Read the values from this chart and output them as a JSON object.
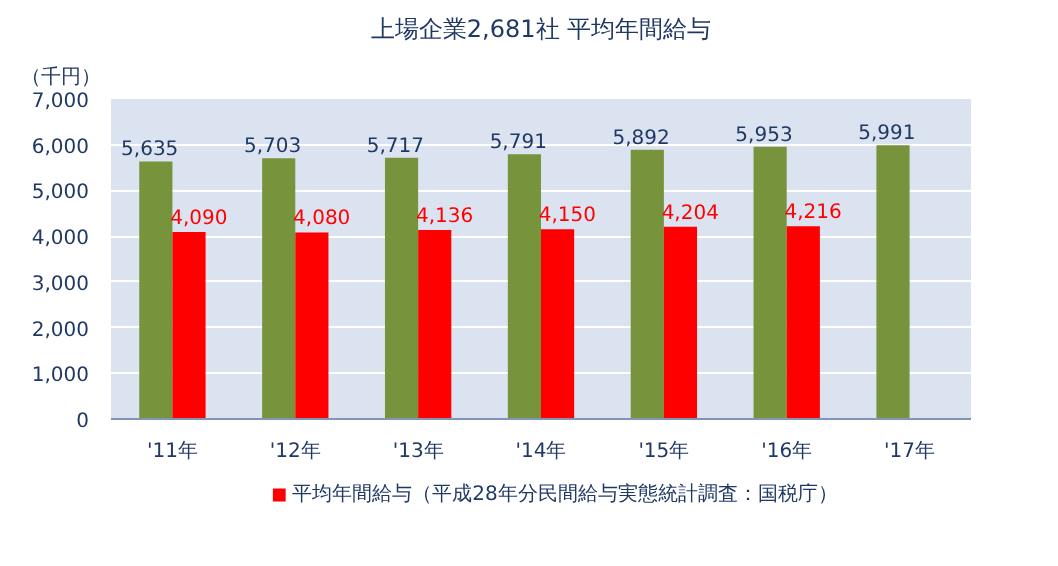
{
  "chart_data": {
    "type": "bar",
    "title": "上場企業2,681社 平均年間給与",
    "ylabel": "（千円）",
    "categories": [
      "'11年",
      "'12年",
      "'13年",
      "'14年",
      "'15年",
      "'16年",
      "'17年"
    ],
    "series": [
      {
        "color": "#77933c",
        "values": [
          5635,
          5703,
          5717,
          5791,
          5892,
          5953,
          5991
        ],
        "value_labels": [
          "5,635",
          "5,703",
          "5,717",
          "5,791",
          "5,892",
          "5,953",
          "5,991"
        ]
      },
      {
        "name": "平均年間給与（平成28年分民間給与実態統計調査：国税庁）",
        "color": "#ff0000",
        "values": [
          4090,
          4080,
          4136,
          4150,
          4204,
          4216,
          null
        ],
        "value_labels": [
          "4,090",
          "4,080",
          "4,136",
          "4,150",
          "4,204",
          "4,216",
          null
        ]
      }
    ],
    "ylim": [
      0,
      7000
    ],
    "yticks": [
      {
        "value": 0,
        "label": "0"
      },
      {
        "value": 1000,
        "label": "1,000"
      },
      {
        "value": 2000,
        "label": "2,000"
      },
      {
        "value": 3000,
        "label": "3,000"
      },
      {
        "value": 4000,
        "label": "4,000"
      },
      {
        "value": 5000,
        "label": "5,000"
      },
      {
        "value": 6000,
        "label": "6,000"
      },
      {
        "value": 7000,
        "label": "7,000"
      }
    ],
    "grid": "y",
    "legend": "bottom"
  }
}
